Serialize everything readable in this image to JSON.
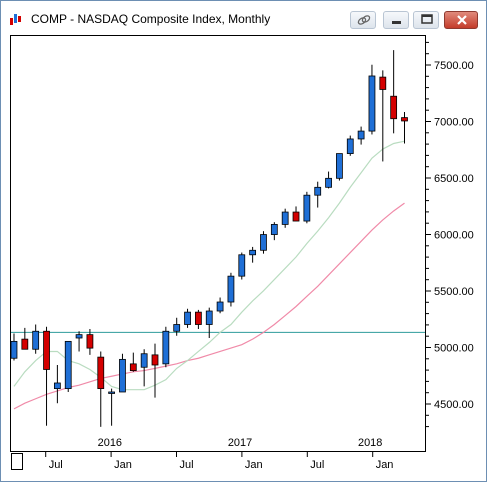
{
  "window": {
    "title": "COMP - NASDAQ Composite Index, Monthly"
  },
  "chart_data": {
    "type": "candlestick",
    "title": "COMP - NASDAQ Composite Index, Monthly",
    "ylim": [
      4250,
      7750
    ],
    "y_ticks": [
      4500,
      5000,
      5500,
      6000,
      6500,
      7000,
      7500
    ],
    "y_tick_labels": [
      "4500.00",
      "5000.00",
      "5500.00",
      "6000.00",
      "6500.00",
      "7000.00",
      "7500.00"
    ],
    "x_year_labels": [
      {
        "label": "2016",
        "index": 9
      },
      {
        "label": "2017",
        "index": 21
      },
      {
        "label": "2018",
        "index": 33
      }
    ],
    "x_month_labels": [
      {
        "label": "Jul",
        "index": 3
      },
      {
        "label": "Jan",
        "index": 9
      },
      {
        "label": "Jul",
        "index": 15
      },
      {
        "label": "Jan",
        "index": 21
      },
      {
        "label": "Jul",
        "index": 27
      },
      {
        "label": "Jan",
        "index": 33
      }
    ],
    "horizontal_line": 5130,
    "colors": {
      "up": "#1f6fd6",
      "down": "#d40000",
      "doji": "#000000",
      "ma_short": "#b9dcc0",
      "ma_long": "#f08aa8",
      "hline": "#2e9c9c"
    },
    "candles": [
      {
        "month": "2015-04",
        "open": 4900,
        "high": 5120,
        "low": 4880,
        "close": 5050
      },
      {
        "month": "2015-05",
        "open": 5070,
        "high": 5170,
        "low": 4990,
        "close": 4980
      },
      {
        "month": "2015-06",
        "open": 4980,
        "high": 5200,
        "low": 4940,
        "close": 5140
      },
      {
        "month": "2015-07",
        "open": 5140,
        "high": 5180,
        "low": 4300,
        "close": 4800
      },
      {
        "month": "2015-08",
        "open": 4630,
        "high": 4840,
        "low": 4500,
        "close": 4680
      },
      {
        "month": "2015-09",
        "open": 4630,
        "high": 5050,
        "low": 4600,
        "close": 5050
      },
      {
        "month": "2015-10",
        "open": 5080,
        "high": 5140,
        "low": 4960,
        "close": 5110
      },
      {
        "month": "2015-11",
        "open": 5110,
        "high": 5160,
        "low": 4930,
        "close": 4990
      },
      {
        "month": "2015-12",
        "open": 4910,
        "high": 4960,
        "low": 4290,
        "close": 4630
      },
      {
        "month": "2016-01",
        "open": 4590,
        "high": 4630,
        "low": 4300,
        "close": 4600
      },
      {
        "month": "2016-02",
        "open": 4600,
        "high": 4940,
        "low": 4600,
        "close": 4890
      },
      {
        "month": "2016-03",
        "open": 4850,
        "high": 4950,
        "low": 4780,
        "close": 4790
      },
      {
        "month": "2016-04",
        "open": 4820,
        "high": 4980,
        "low": 4650,
        "close": 4940
      },
      {
        "month": "2016-05",
        "open": 4930,
        "high": 5030,
        "low": 4550,
        "close": 4840
      },
      {
        "month": "2016-06",
        "open": 4850,
        "high": 5180,
        "low": 4820,
        "close": 5140
      },
      {
        "month": "2016-07",
        "open": 5140,
        "high": 5260,
        "low": 5100,
        "close": 5200
      },
      {
        "month": "2016-08",
        "open": 5200,
        "high": 5340,
        "low": 5170,
        "close": 5310
      },
      {
        "month": "2016-09",
        "open": 5310,
        "high": 5330,
        "low": 5160,
        "close": 5200
      },
      {
        "month": "2016-10",
        "open": 5200,
        "high": 5350,
        "low": 5080,
        "close": 5320
      },
      {
        "month": "2016-11",
        "open": 5320,
        "high": 5440,
        "low": 5300,
        "close": 5400
      },
      {
        "month": "2016-12",
        "open": 5400,
        "high": 5660,
        "low": 5360,
        "close": 5630
      },
      {
        "month": "2017-01",
        "open": 5630,
        "high": 5840,
        "low": 5600,
        "close": 5820
      },
      {
        "month": "2017-02",
        "open": 5820,
        "high": 5890,
        "low": 5750,
        "close": 5860
      },
      {
        "month": "2017-03",
        "open": 5860,
        "high": 6030,
        "low": 5830,
        "close": 6000
      },
      {
        "month": "2017-04",
        "open": 6000,
        "high": 6110,
        "low": 5950,
        "close": 6090
      },
      {
        "month": "2017-05",
        "open": 6090,
        "high": 6230,
        "low": 6060,
        "close": 6200
      },
      {
        "month": "2017-06",
        "open": 6200,
        "high": 6250,
        "low": 6120,
        "close": 6120
      },
      {
        "month": "2017-07",
        "open": 6120,
        "high": 6380,
        "low": 6100,
        "close": 6350
      },
      {
        "month": "2017-08",
        "open": 6350,
        "high": 6470,
        "low": 6240,
        "close": 6420
      },
      {
        "month": "2017-09",
        "open": 6420,
        "high": 6560,
        "low": 6410,
        "close": 6500
      },
      {
        "month": "2017-10",
        "open": 6500,
        "high": 6720,
        "low": 6480,
        "close": 6720
      },
      {
        "month": "2017-11",
        "open": 6720,
        "high": 6880,
        "low": 6700,
        "close": 6850
      },
      {
        "month": "2017-12",
        "open": 6850,
        "high": 6960,
        "low": 6800,
        "close": 6920
      },
      {
        "month": "2018-01",
        "open": 6920,
        "high": 7510,
        "low": 6890,
        "close": 7410
      },
      {
        "month": "2018-02",
        "open": 7400,
        "high": 7460,
        "low": 6650,
        "close": 7290
      },
      {
        "month": "2018-03",
        "open": 7230,
        "high": 7640,
        "low": 6900,
        "close": 7030
      },
      {
        "month": "2018-04",
        "open": 7040,
        "high": 7090,
        "low": 6810,
        "close": 7010
      }
    ],
    "ma_short": [
      4650,
      4780,
      4880,
      4960,
      4960,
      4880,
      4850,
      4800,
      4730,
      4650,
      4620,
      4620,
      4620,
      4660,
      4710,
      4810,
      4880,
      4960,
      5040,
      5130,
      5200,
      5310,
      5410,
      5500,
      5600,
      5700,
      5800,
      5920,
      6030,
      6150,
      6280,
      6420,
      6550,
      6680,
      6760,
      6810,
      6830
    ],
    "ma_long": [
      4450,
      4500,
      4540,
      4580,
      4610,
      4640,
      4660,
      4690,
      4720,
      4740,
      4760,
      4780,
      4790,
      4810,
      4830,
      4850,
      4880,
      4900,
      4930,
      4960,
      4990,
      5020,
      5070,
      5130,
      5200,
      5280,
      5360,
      5450,
      5540,
      5640,
      5740,
      5840,
      5940,
      6040,
      6130,
      6210,
      6280
    ]
  }
}
